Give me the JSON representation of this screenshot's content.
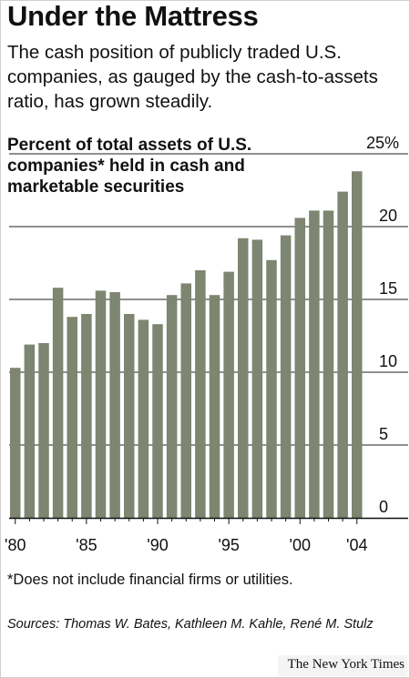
{
  "header": {
    "title": "Under the Mattress",
    "subtitle": "The cash position of publicly traded U.S. companies, as gauged by the cash-to-assets ratio, has grown steadily."
  },
  "chart_data": {
    "type": "bar",
    "title": "Percent of total assets of U.S. companies* held in cash and marketable securities",
    "xlabel": "",
    "ylabel": "",
    "ylim": [
      0,
      25
    ],
    "y_ticks": [
      "0",
      "5",
      "10",
      "15",
      "20",
      "25%"
    ],
    "x_tick_labels": [
      "'80",
      "'85",
      "'90",
      "'95",
      "'00",
      "'04"
    ],
    "categories": [
      "1980",
      "1981",
      "1982",
      "1983",
      "1984",
      "1985",
      "1986",
      "1987",
      "1988",
      "1989",
      "1990",
      "1991",
      "1992",
      "1993",
      "1994",
      "1995",
      "1996",
      "1997",
      "1998",
      "1999",
      "2000",
      "2001",
      "2002",
      "2003",
      "2004"
    ],
    "values": [
      10.3,
      11.9,
      12.0,
      15.8,
      13.8,
      14.0,
      15.6,
      15.5,
      14.0,
      13.6,
      13.3,
      15.3,
      16.1,
      17.0,
      15.3,
      16.9,
      19.2,
      19.1,
      17.7,
      19.4,
      20.6,
      21.1,
      21.1,
      22.4,
      23.8
    ],
    "bar_color": "#7e8570",
    "grid": true,
    "legend": "none"
  },
  "footer": {
    "footnote": "*Does not include financial firms or utilities.",
    "sources": "Sources: Thomas W. Bates, Kathleen M. Kahle, René M. Stulz",
    "credit": "The New York Times"
  }
}
